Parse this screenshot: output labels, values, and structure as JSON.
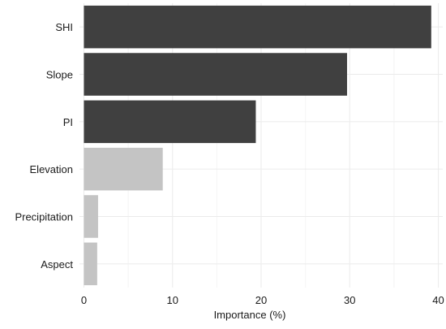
{
  "chart_data": {
    "type": "bar",
    "orientation": "horizontal",
    "categories": [
      "SHI",
      "Slope",
      "PI",
      "Elevation",
      "Precipitation",
      "Aspect"
    ],
    "values": [
      39.2,
      29.7,
      19.4,
      8.9,
      1.6,
      1.5
    ],
    "colors": [
      "#404040",
      "#404040",
      "#404040",
      "#c4c4c4",
      "#c4c4c4",
      "#c4c4c4"
    ],
    "xlabel": "Importance (%)",
    "ylabel": "",
    "xlim": [
      -0.5,
      40.5
    ],
    "xticks": [
      0,
      10,
      20,
      30,
      40
    ],
    "xtick_labels": [
      "0",
      "10",
      "20",
      "30",
      "40"
    ],
    "grid": true,
    "legend": "none"
  }
}
